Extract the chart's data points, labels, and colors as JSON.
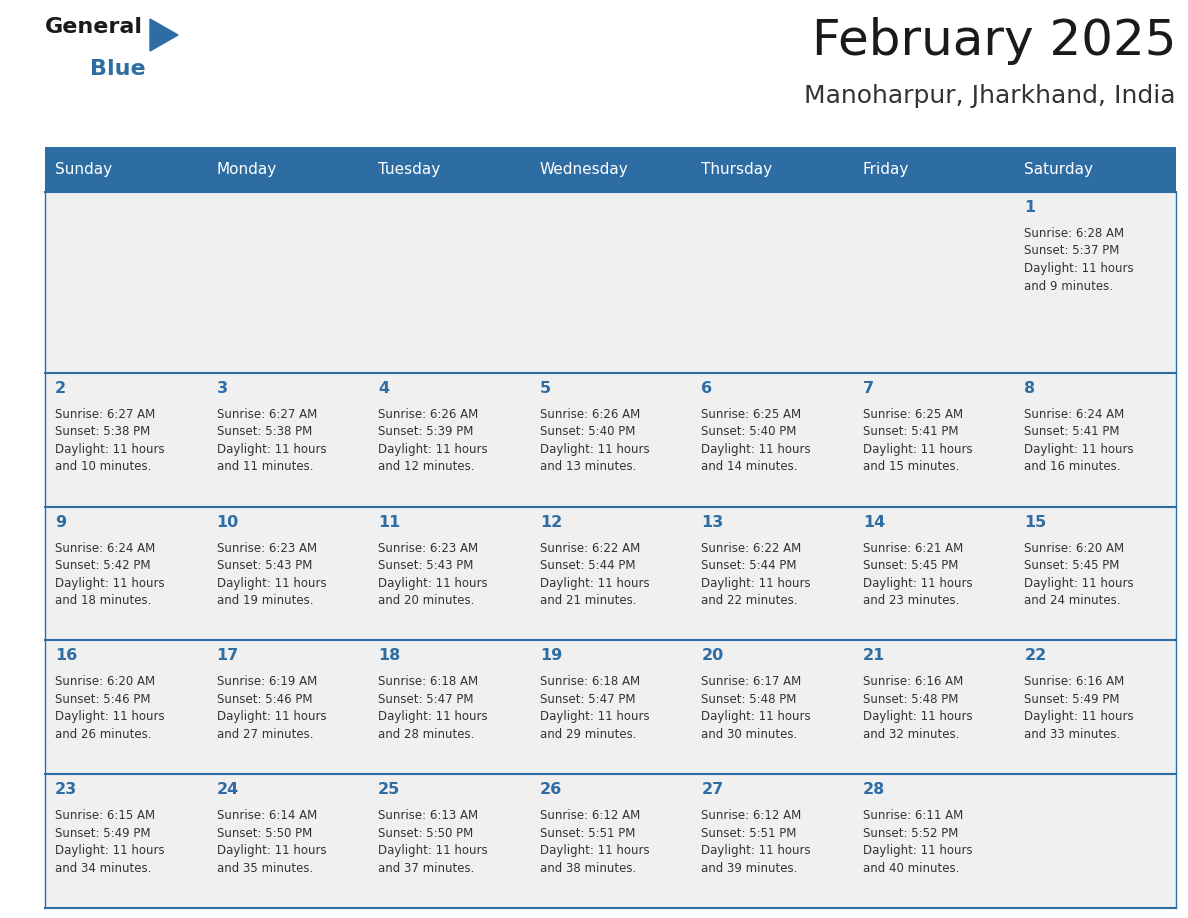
{
  "title": "February 2025",
  "subtitle": "Manoharpur, Jharkhand, India",
  "header_bg": "#2E6DA4",
  "header_text_color": "#FFFFFF",
  "cell_bg": "#F0F0F0",
  "day_number_color": "#2E6DA4",
  "info_text_color": "#333333",
  "grid_line_color": "#2E6DA4",
  "days_of_week": [
    "Sunday",
    "Monday",
    "Tuesday",
    "Wednesday",
    "Thursday",
    "Friday",
    "Saturday"
  ],
  "weeks": [
    [
      {
        "day": null,
        "info": ""
      },
      {
        "day": null,
        "info": ""
      },
      {
        "day": null,
        "info": ""
      },
      {
        "day": null,
        "info": ""
      },
      {
        "day": null,
        "info": ""
      },
      {
        "day": null,
        "info": ""
      },
      {
        "day": 1,
        "info": "Sunrise: 6:28 AM\nSunset: 5:37 PM\nDaylight: 11 hours\nand 9 minutes."
      }
    ],
    [
      {
        "day": 2,
        "info": "Sunrise: 6:27 AM\nSunset: 5:38 PM\nDaylight: 11 hours\nand 10 minutes."
      },
      {
        "day": 3,
        "info": "Sunrise: 6:27 AM\nSunset: 5:38 PM\nDaylight: 11 hours\nand 11 minutes."
      },
      {
        "day": 4,
        "info": "Sunrise: 6:26 AM\nSunset: 5:39 PM\nDaylight: 11 hours\nand 12 minutes."
      },
      {
        "day": 5,
        "info": "Sunrise: 6:26 AM\nSunset: 5:40 PM\nDaylight: 11 hours\nand 13 minutes."
      },
      {
        "day": 6,
        "info": "Sunrise: 6:25 AM\nSunset: 5:40 PM\nDaylight: 11 hours\nand 14 minutes."
      },
      {
        "day": 7,
        "info": "Sunrise: 6:25 AM\nSunset: 5:41 PM\nDaylight: 11 hours\nand 15 minutes."
      },
      {
        "day": 8,
        "info": "Sunrise: 6:24 AM\nSunset: 5:41 PM\nDaylight: 11 hours\nand 16 minutes."
      }
    ],
    [
      {
        "day": 9,
        "info": "Sunrise: 6:24 AM\nSunset: 5:42 PM\nDaylight: 11 hours\nand 18 minutes."
      },
      {
        "day": 10,
        "info": "Sunrise: 6:23 AM\nSunset: 5:43 PM\nDaylight: 11 hours\nand 19 minutes."
      },
      {
        "day": 11,
        "info": "Sunrise: 6:23 AM\nSunset: 5:43 PM\nDaylight: 11 hours\nand 20 minutes."
      },
      {
        "day": 12,
        "info": "Sunrise: 6:22 AM\nSunset: 5:44 PM\nDaylight: 11 hours\nand 21 minutes."
      },
      {
        "day": 13,
        "info": "Sunrise: 6:22 AM\nSunset: 5:44 PM\nDaylight: 11 hours\nand 22 minutes."
      },
      {
        "day": 14,
        "info": "Sunrise: 6:21 AM\nSunset: 5:45 PM\nDaylight: 11 hours\nand 23 minutes."
      },
      {
        "day": 15,
        "info": "Sunrise: 6:20 AM\nSunset: 5:45 PM\nDaylight: 11 hours\nand 24 minutes."
      }
    ],
    [
      {
        "day": 16,
        "info": "Sunrise: 6:20 AM\nSunset: 5:46 PM\nDaylight: 11 hours\nand 26 minutes."
      },
      {
        "day": 17,
        "info": "Sunrise: 6:19 AM\nSunset: 5:46 PM\nDaylight: 11 hours\nand 27 minutes."
      },
      {
        "day": 18,
        "info": "Sunrise: 6:18 AM\nSunset: 5:47 PM\nDaylight: 11 hours\nand 28 minutes."
      },
      {
        "day": 19,
        "info": "Sunrise: 6:18 AM\nSunset: 5:47 PM\nDaylight: 11 hours\nand 29 minutes."
      },
      {
        "day": 20,
        "info": "Sunrise: 6:17 AM\nSunset: 5:48 PM\nDaylight: 11 hours\nand 30 minutes."
      },
      {
        "day": 21,
        "info": "Sunrise: 6:16 AM\nSunset: 5:48 PM\nDaylight: 11 hours\nand 32 minutes."
      },
      {
        "day": 22,
        "info": "Sunrise: 6:16 AM\nSunset: 5:49 PM\nDaylight: 11 hours\nand 33 minutes."
      }
    ],
    [
      {
        "day": 23,
        "info": "Sunrise: 6:15 AM\nSunset: 5:49 PM\nDaylight: 11 hours\nand 34 minutes."
      },
      {
        "day": 24,
        "info": "Sunrise: 6:14 AM\nSunset: 5:50 PM\nDaylight: 11 hours\nand 35 minutes."
      },
      {
        "day": 25,
        "info": "Sunrise: 6:13 AM\nSunset: 5:50 PM\nDaylight: 11 hours\nand 37 minutes."
      },
      {
        "day": 26,
        "info": "Sunrise: 6:12 AM\nSunset: 5:51 PM\nDaylight: 11 hours\nand 38 minutes."
      },
      {
        "day": 27,
        "info": "Sunrise: 6:12 AM\nSunset: 5:51 PM\nDaylight: 11 hours\nand 39 minutes."
      },
      {
        "day": 28,
        "info": "Sunrise: 6:11 AM\nSunset: 5:52 PM\nDaylight: 11 hours\nand 40 minutes."
      },
      {
        "day": null,
        "info": ""
      }
    ]
  ],
  "logo_text_general": "General",
  "logo_text_blue": "Blue",
  "logo_color_general": "#1a1a1a",
  "logo_color_blue": "#2E6DA4",
  "logo_triangle_color": "#2E6DA4",
  "fig_width": 11.88,
  "fig_height": 9.18,
  "dpi": 100
}
